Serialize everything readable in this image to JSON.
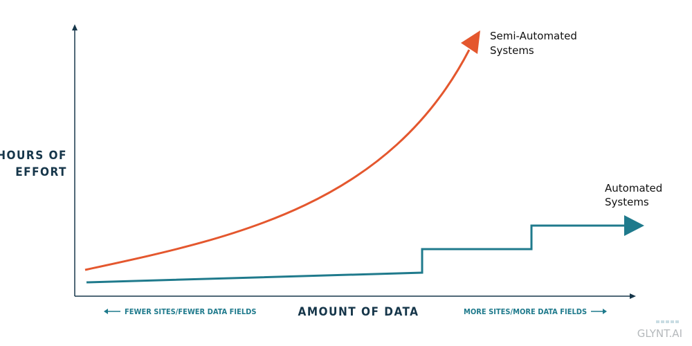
{
  "y_axis_label": [
    "HOURS OF",
    "EFFORT"
  ],
  "x_axis_label": "AMOUNT OF DATA",
  "x_axis_left_note": "FEWER SITES/FEWER DATA FIELDS",
  "x_axis_right_note": "MORE SITES/MORE DATA FIELDS",
  "curves": [
    {
      "label": [
        "Semi-Automated",
        "Systems"
      ]
    },
    {
      "label": [
        "Automated",
        "Systems"
      ]
    }
  ],
  "logo": "GLYNT.AI"
}
